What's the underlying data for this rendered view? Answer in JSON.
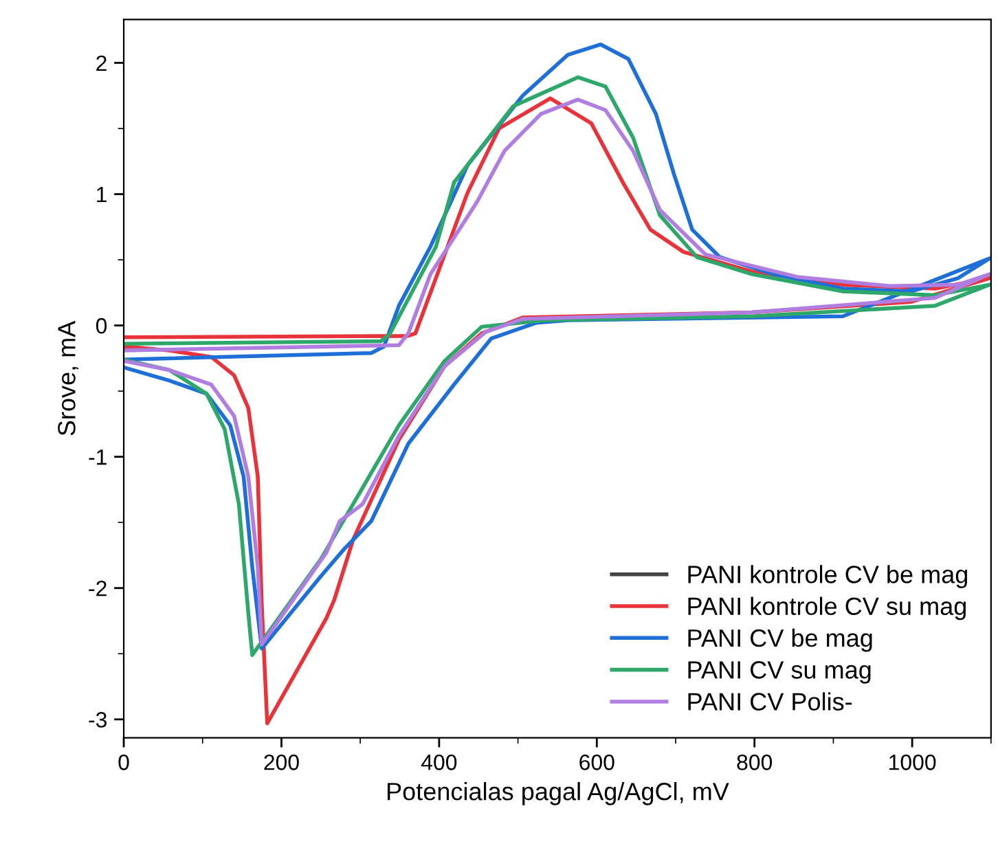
{
  "chart_data": {
    "type": "line",
    "xlabel": "Potencialas pagal Ag/AgCl, mV",
    "ylabel": "Srove, mA",
    "xlim": [
      0,
      1100
    ],
    "ylim": [
      -3.14,
      2.33
    ],
    "xticks": [
      0,
      200,
      400,
      600,
      800,
      1000
    ],
    "yticks": [
      -3,
      -2,
      -1,
      0,
      1,
      2
    ],
    "grid": false,
    "legend": "bottom right",
    "line_style": "solid",
    "marker": "none",
    "series": [
      {
        "name": "PANI kontrole CV be mag",
        "color": "#444444"
      },
      {
        "name": "PANI kontrole CV su mag",
        "color": "#e8333a",
        "x": [
          0,
          360,
          370,
          436,
          476,
          541,
          593,
          633,
          668,
          710,
          797,
          912,
          1029,
          1098,
          999,
          797,
          506,
          454,
          407,
          349,
          291,
          267,
          257,
          182,
          175,
          170,
          158,
          140,
          111,
          58,
          0
        ],
        "values": [
          -0.09,
          -0.08,
          -0.06,
          1.01,
          1.5,
          1.73,
          1.54,
          1.09,
          0.73,
          0.56,
          0.41,
          0.31,
          0.28,
          0.36,
          0.18,
          0.1,
          0.06,
          -0.06,
          -0.31,
          -0.87,
          -1.63,
          -2.09,
          -2.23,
          -3.03,
          -2.12,
          -1.15,
          -0.63,
          -0.38,
          -0.24,
          -0.19,
          -0.16
        ]
      },
      {
        "name": "PANI CV be mag",
        "color": "#1f6fd8",
        "x": [
          0,
          314,
          330,
          349,
          389,
          436,
          506,
          563,
          605,
          640,
          675,
          698,
          721,
          756,
          825,
          912,
          999,
          1058,
          1098,
          912,
          564,
          523,
          466,
          419,
          361,
          314,
          280,
          250,
          175,
          163,
          152,
          135,
          105,
          58,
          0
        ],
        "values": [
          -0.26,
          -0.21,
          -0.16,
          0.15,
          0.6,
          1.22,
          1.75,
          2.06,
          2.14,
          2.03,
          1.61,
          1.15,
          0.73,
          0.52,
          0.39,
          0.28,
          0.26,
          0.36,
          0.51,
          0.07,
          0.04,
          0.02,
          -0.1,
          -0.45,
          -0.9,
          -1.49,
          -1.7,
          -1.91,
          -2.46,
          -1.84,
          -1.15,
          -0.76,
          -0.52,
          -0.42,
          -0.32
        ]
      },
      {
        "name": "PANI CV su mag",
        "color": "#2ea86a",
        "x": [
          0,
          326,
          337,
          396,
          419,
          494,
          576,
          611,
          646,
          680,
          727,
          797,
          912,
          1029,
          1098,
          1029,
          797,
          535,
          454,
          407,
          349,
          291,
          250,
          163,
          158,
          146,
          128,
          105,
          58,
          0
        ],
        "values": [
          -0.14,
          -0.12,
          -0.07,
          0.6,
          1.09,
          1.67,
          1.89,
          1.82,
          1.43,
          0.84,
          0.52,
          0.39,
          0.26,
          0.23,
          0.31,
          0.15,
          0.07,
          0.04,
          -0.01,
          -0.27,
          -0.76,
          -1.36,
          -1.78,
          -2.51,
          -2.19,
          -1.36,
          -0.79,
          -0.52,
          -0.34,
          -0.26
        ]
      },
      {
        "name": "PANI CV Polis-",
        "color": "#b07de0",
        "x": [
          0,
          349,
          361,
          389,
          448,
          483,
          529,
          576,
          611,
          646,
          680,
          738,
          854,
          971,
          1058,
          1098,
          1029,
          797,
          506,
          459,
          407,
          349,
          303,
          274,
          257,
          175,
          170,
          158,
          140,
          111,
          58,
          0
        ],
        "values": [
          -0.19,
          -0.15,
          -0.06,
          0.39,
          0.94,
          1.33,
          1.61,
          1.72,
          1.64,
          1.33,
          0.88,
          0.54,
          0.37,
          0.3,
          0.31,
          0.39,
          0.21,
          0.1,
          0.05,
          -0.05,
          -0.31,
          -0.84,
          -1.36,
          -1.49,
          -1.73,
          -2.43,
          -1.84,
          -1.15,
          -0.69,
          -0.45,
          -0.34,
          -0.27
        ]
      }
    ]
  }
}
